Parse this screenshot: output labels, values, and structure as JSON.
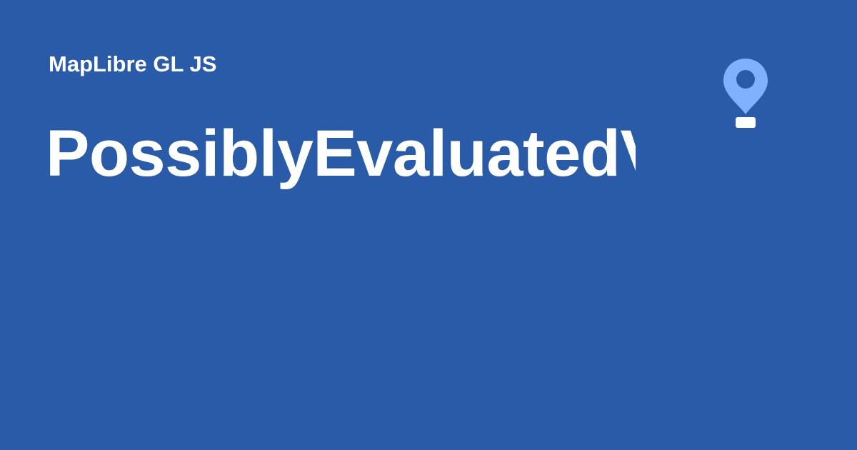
{
  "header": {
    "site_name": "MapLibre GL JS",
    "page_title": "PossiblyEvaluatedValue"
  },
  "logo": {
    "icon": "map-pin-icon",
    "color": "#7eb2ff"
  },
  "colors": {
    "background": "#2a5ba8",
    "text": "#ffffff"
  }
}
